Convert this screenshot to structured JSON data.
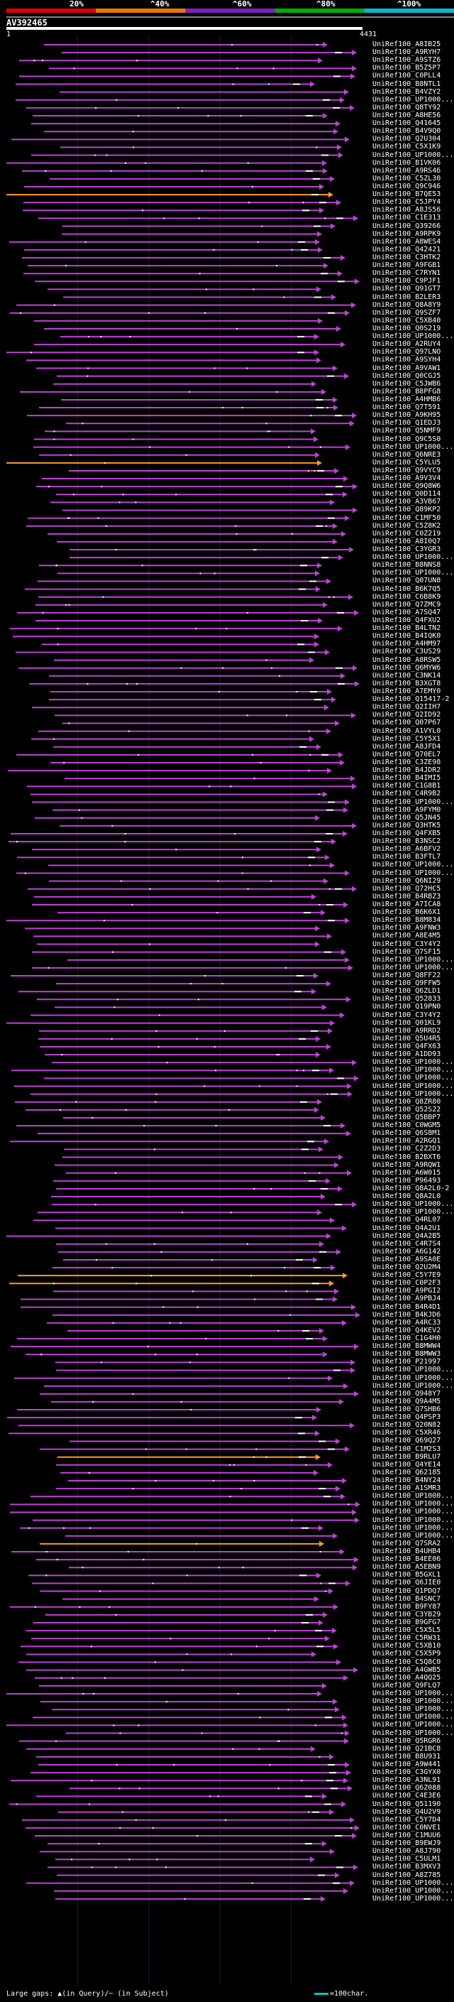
{
  "query": {
    "id": "AV392465",
    "start": "1",
    "end": "4431"
  },
  "identity_scale": {
    "labels": [
      "20%",
      "^40%",
      "^60%",
      "^80%",
      "^100%"
    ],
    "colors": [
      "#e00000",
      "#e87800",
      "#8020c0",
      "#00b000",
      "#00b8d0"
    ]
  },
  "colors": {
    "hit_default": "#c040d8",
    "hit_highlight": "#ff9a20",
    "query_bar": "#ffffff",
    "legend_bar": "#00c4c4",
    "gap_mark": "#ffffff"
  },
  "footer": {
    "text": "Large gaps: ▲(in Query)/~ (in Subject)",
    "legend": "=100char."
  },
  "hits": [
    "UniRef100_A8IB25",
    "UniRef100_A9RYH7",
    "UniRef100_A9STZ6",
    "UniRef100_B5Z5P7",
    "UniRef100_C0PLL4",
    "UniRef100_B8NTL1",
    "UniRef100_B4VZY2",
    "UniRef100_UP1000...",
    "UniRef100_Q8TY92",
    "UniRef100_A8HE56",
    "UniRef100_Q41645",
    "UniRef100_B4V9Q0",
    "UniRef100_Q2U304",
    "UniRef100_C5X1K9",
    "UniRef100_UP1000...",
    "UniRef100_B1VK06",
    "UniRef100_A9RS46",
    "UniRef100_C5ZL30",
    "UniRef100_Q9C946",
    "UniRef100_B7QE53",
    "UniRef100_C5JPY4",
    "UniRef100_A8JS56",
    "UniRef100_C1E313",
    "UniRef100_Q39266",
    "UniRef100_A9RPK9",
    "UniRef100_A8WES4",
    "UniRef100_Q42421",
    "UniRef100_C3HTK2",
    "UniRef100_A9FGB1",
    "UniRef100_C7RYN1",
    "UniRef100_C9PJF1",
    "UniRef100_Q91GT7",
    "UniRef100_B2LER3",
    "UniRef100_Q8A8Y9",
    "UniRef100_Q9SZF7",
    "UniRef100_C5XB40",
    "UniRef100_Q0S219",
    "UniRef100_UP1000...",
    "UniRef100_A2RUY4",
    "UniRef100_Q97LNO",
    "UniRef100_A9SYH4",
    "UniRef100_A9VAW1",
    "UniRef100_Q0CGJ5",
    "UniRef100_C5JWB6",
    "UniRef100_B8PFG8",
    "UniRef100_A4HMB6",
    "UniRef100_Q7T591",
    "UniRef100_A9KH95",
    "UniRef100_Q1EDJ3",
    "UniRef100_Q5NMF9",
    "UniRef100_Q9C5S0",
    "UniRef100_UP1000...",
    "UniRef100_Q6NRE3",
    "UniRef100_C5YLU5",
    "UniRef100_Q9VYC9",
    "UniRef100_A9V3V4",
    "UniRef100_Q9Q8W6",
    "UniRef100_Q0D114",
    "UniRef100_A3VB67",
    "UniRef100_Q89KP2",
    "UniRef100_C1MF50",
    "UniRef100_C5Z8K2",
    "UniRef100_C0Z219",
    "UniRef100_A8I0Q7",
    "UniRef100_C3YGR3",
    "UniRef100_UP1000...",
    "UniRef100_B8NNS8",
    "UniRef100_UP1000...",
    "UniRef100_Q07UN8",
    "UniRef100_B6K7Q5",
    "UniRef100_C6B8K9",
    "UniRef100_Q7ZMC9",
    "UniRef100_A7SQ47",
    "UniRef100_Q4FXU2",
    "UniRef100_B4LTN2",
    "UniRef100_B4IQK0",
    "UniRef100_A4HM97",
    "UniRef100_C3US29",
    "UniRef100_A8RSW5",
    "UniRef100_Q6MYW6",
    "UniRef100_C3NK14",
    "UniRef100_B3XGT8",
    "UniRef100_A7EMY0",
    "UniRef100_Q15417-2",
    "UniRef100_Q2IIH7",
    "UniRef100_Q2ID92",
    "UniRef100_Q07P67",
    "UniRef100_A1VYL0",
    "UniRef100_C5Y5X1",
    "UniRef100_A8JFD4",
    "UniRef100_Q70EL7",
    "UniRef100_C3ZE98",
    "UniRef100_B4JDR2",
    "UniRef100_B4IMI5",
    "UniRef100_C1G8B1",
    "UniRef100_C4R9B2",
    "UniRef100_UP1000...",
    "UniRef100_A9FYM0",
    "UniRef100_Q5JN45",
    "UniRef100_Q3HTK5",
    "UniRef100_Q4FXB5",
    "UniRef100_B3NSC2",
    "UniRef100_A6BFV2",
    "UniRef100_B3FTL7",
    "UniRef100_UP1000...",
    "UniRef100_UP1000...",
    "UniRef100_Q6NI29",
    "UniRef100_Q72HC5",
    "UniRef100_B4RBZ3",
    "UniRef100_A7ICA8",
    "UniRef100_B6K6X1",
    "UniRef100_B8M834",
    "UniRef100_A9FNW3",
    "UniRef100_A8E4M5",
    "UniRef100_C3Y4Y2",
    "UniRef100_Q7SF15",
    "UniRef100_UP1000...",
    "UniRef100_UP1000...",
    "UniRef100_Q8FF22",
    "UniRef100_Q9FFW5",
    "UniRef100_Q6ZLD1",
    "UniRef100_Q52833",
    "UniRef100_Q19PN0",
    "UniRef100_C3Y4Y2",
    "UniRef100_Q01KL9",
    "UniRef100_A9RRD2",
    "UniRef100_Q5U4R5",
    "UniRef100_Q4FX63",
    "UniRef100_A1DD93",
    "UniRef100_UP1000...",
    "UniRef100_UP1000...",
    "UniRef100_UP1000...",
    "UniRef100_UP1000...",
    "UniRef100_UP1000...",
    "UniRef100_Q8ZR80",
    "UniRef100_Q52S22",
    "UniRef100_Q5BBP7",
    "UniRef100_C0WGM5",
    "UniRef100_Q6S8M1",
    "UniRef100_A2RGQ1",
    "UniRef100_C2Z2D3",
    "UniRef100_B2BXT6",
    "UniRef100_A9RQW1",
    "UniRef100_A6W015",
    "UniRef100_P96493",
    "UniRef100_Q8A2L0-2",
    "UniRef100_Q8A2L0",
    "UniRef100_UP1000...",
    "UniRef100_UP1000...",
    "UniRef100_Q4RL07",
    "UniRef100_Q4A2U1",
    "UniRef100_Q4A2B5",
    "UniRef100_C4R7S4",
    "UniRef100_A6G142",
    "UniRef100_A9SA0E",
    "UniRef100_Q2U2M4",
    "UniRef100_C5Y7E9",
    "UniRef100_C0P2F3",
    "UniRef100_A9PGI2",
    "UniRef100_A9PBJ4",
    "UniRef100_B4R4D1",
    "UniRef100_B4KJD6",
    "UniRef100_A4RC33",
    "UniRef100_Q4KEV2",
    "UniRef100_C1G4H0",
    "UniRef100_B8MWW4",
    "UniRef100_B8MWW3",
    "UniRef100_P21997",
    "UniRef100_UP1000...",
    "UniRef100_UP1000...",
    "UniRef100_UP1000...",
    "UniRef100_Q948Y7",
    "UniRef100_Q9A4M5",
    "UniRef100_Q7SHB6",
    "UniRef100_Q4PSP3",
    "UniRef100_Q20N82",
    "UniRef100_C5XR46",
    "UniRef100_Q69Q27",
    "UniRef100_C1M2S3",
    "UniRef100_B9RLU7",
    "UniRef100_Q4YE14",
    "UniRef100_Q62185",
    "UniRef100_B4NY24",
    "UniRef100_A1SMR3",
    "UniRef100_UP1000...",
    "UniRef100_UP1000...",
    "UniRef100_UP1000...",
    "UniRef100_UP1000...",
    "UniRef100_UP1000...",
    "UniRef100_UP1000...",
    "UniRef100_Q7SRA2",
    "UniRef100_B4UHB4",
    "UniRef100_B4EE06",
    "UniRef100_A5EBN9",
    "UniRef100_B5GXL1",
    "UniRef100_Q6JIE0",
    "UniRef100_Q1PDQ7",
    "UniRef100_B4SNC7",
    "UniRef100_B9FY87",
    "UniRef100_C3YB29",
    "UniRef100_B9GFG7",
    "UniRef100_C5X5L5",
    "UniRef100_C5RW31",
    "UniRef100_C5XB10",
    "UniRef100_C5X5P9",
    "UniRef100_C5Q8C0",
    "UniRef100_A4GWB5",
    "UniRef100_A4QQ25",
    "UniRef100_Q9FLQ7",
    "UniRef100_UP1000...",
    "UniRef100_UP1000...",
    "UniRef100_UP1000...",
    "UniRef100_UP1000...",
    "UniRef100_UP1000...",
    "UniRef100_UP1000...",
    "UniRef100_Q5RGR6",
    "UniRef100_Q21BC8",
    "UniRef100_B8U931",
    "UniRef100_A9W441",
    "UniRef100_C3GYX0",
    "UniRef100_A3NL91",
    "UniRef100_Q6Z088",
    "UniRef100_C4E3E6",
    "UniRef100_Q51190",
    "UniRef100_Q4U2V9",
    "UniRef100_C5Y7D4",
    "UniRef100_C0NVE1",
    "UniRef100_C1MUU6",
    "UniRef100_B9EWJ9",
    "UniRef100_A8J790",
    "UniRef100_C5ULM1",
    "UniRef100_B3MXV3",
    "UniRef100_A8Z785",
    "UniRef100_UP1000...",
    "UniRef100_UP1000...",
    "UniRef100_UP1000..."
  ]
}
